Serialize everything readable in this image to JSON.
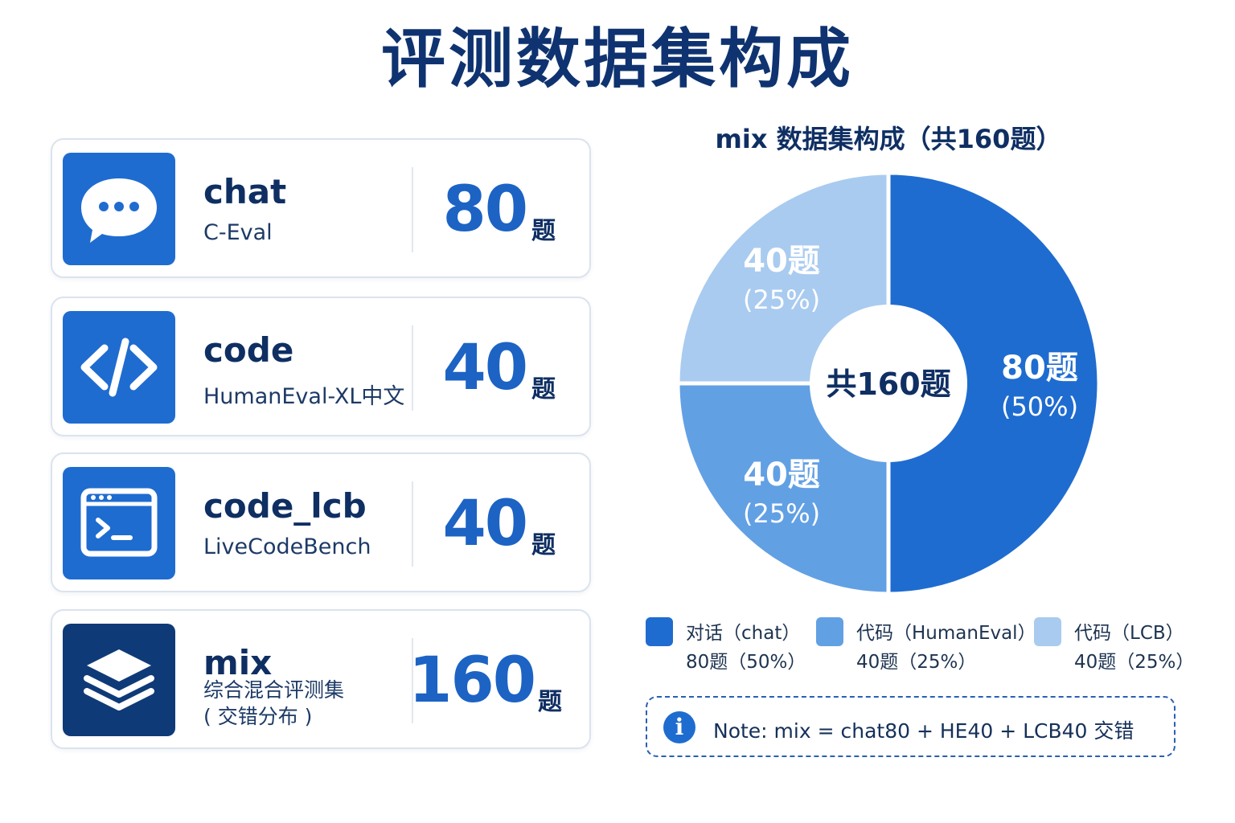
{
  "title": "评测数据集构成",
  "unit_label": "题",
  "cards": [
    {
      "name": "chat",
      "source": "C-Eval",
      "count": "80",
      "icon": "chat-bubble-icon"
    },
    {
      "name": "code",
      "source": "HumanEval-XL中文",
      "count": "40",
      "icon": "code-brackets-icon"
    },
    {
      "name": "code_lcb",
      "source": "LiveCodeBench",
      "count": "40",
      "icon": "terminal-window-icon"
    },
    {
      "name": "mix",
      "source_line1": "综合混合评测集",
      "source_line2": "( 交错分布 )",
      "count": "160",
      "icon": "layers-stack-icon"
    }
  ],
  "chart_data": {
    "type": "pie",
    "title": "mix 数据集构成（共160题）",
    "center_label": "共160题",
    "total": 160,
    "slices": [
      {
        "name": "对话（chat）",
        "value": 80,
        "percent": 50,
        "color": "#1f6cd0",
        "label_count": "80题",
        "label_pct": "(50%)",
        "legend_value": "80题（50%）"
      },
      {
        "name": "代码（HumanEval）",
        "value": 40,
        "percent": 25,
        "color": "#62a0e4",
        "label_count": "40题",
        "label_pct": "(25%)",
        "legend_value": "40题（25%）"
      },
      {
        "name": "代码（LCB）",
        "value": 40,
        "percent": 25,
        "color": "#a9cbf0",
        "label_count": "40题",
        "label_pct": "(25%)",
        "legend_value": "40题（25%）"
      }
    ],
    "legend_position": "bottom"
  },
  "note": {
    "text": "Note: mix = chat80 + HE40 + LCB40 交错",
    "icon": "info-icon"
  }
}
